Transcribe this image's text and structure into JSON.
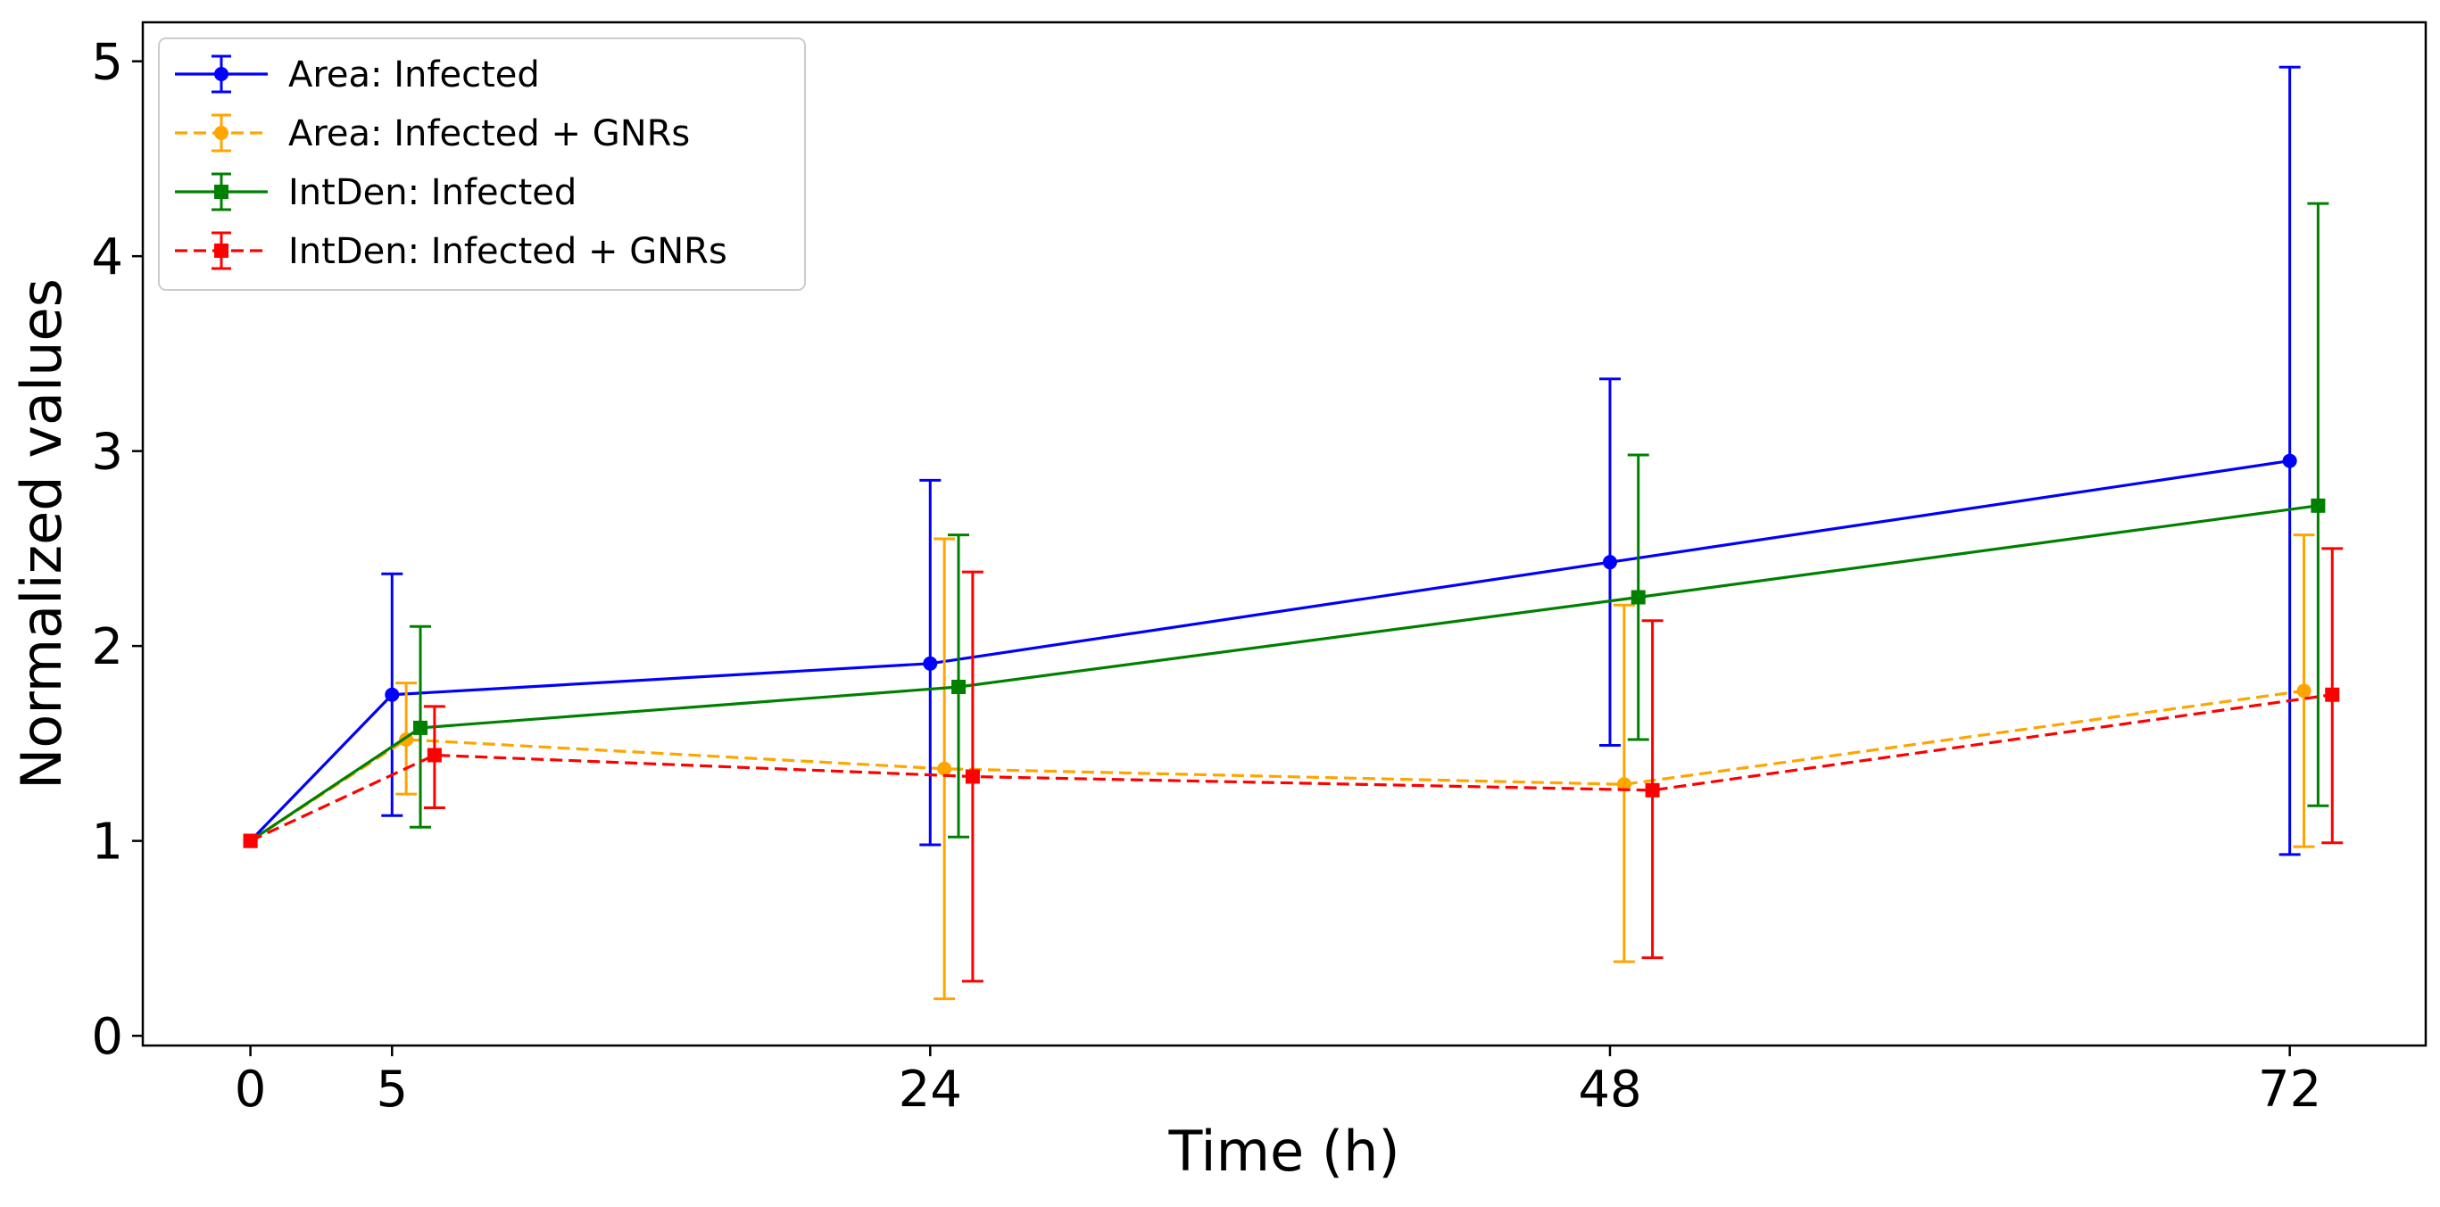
{
  "chart_data": {
    "type": "line",
    "title": "",
    "xlabel": "Time (h)",
    "ylabel": "Normalized values",
    "xlim": [
      -3.8,
      76.8
    ],
    "ylim": [
      -0.05,
      5.2
    ],
    "xticks": [
      0,
      5,
      24,
      48,
      72
    ],
    "yticks": [
      0,
      1,
      2,
      3,
      4,
      5
    ],
    "xtick_labels": [
      "0",
      "5",
      "24",
      "48",
      "72"
    ],
    "ytick_labels": [
      "0",
      "1",
      "2",
      "3",
      "4",
      "5"
    ],
    "grid": false,
    "legend_position": "top-left",
    "series": [
      {
        "name": "Area: Infected",
        "color": "#0000ff",
        "linestyle": "solid",
        "marker": "circle",
        "x": [
          0,
          5,
          24,
          48,
          72
        ],
        "y": [
          1.0,
          1.75,
          1.91,
          2.43,
          2.95
        ],
        "err_low": [
          1.0,
          1.13,
          0.98,
          1.49,
          0.93
        ],
        "err_high": [
          1.0,
          2.37,
          2.85,
          3.37,
          4.97
        ]
      },
      {
        "name": "Area: Infected + GNRs",
        "color": "#ffa500",
        "linestyle": "dashed",
        "marker": "circle",
        "x": [
          0,
          5.5,
          24.5,
          48.5,
          72.5
        ],
        "y": [
          1.0,
          1.52,
          1.37,
          1.29,
          1.77
        ],
        "err_low": [
          1.0,
          1.24,
          0.19,
          0.38,
          0.97
        ],
        "err_high": [
          1.0,
          1.81,
          2.55,
          2.21,
          2.57
        ]
      },
      {
        "name": "IntDen: Infected",
        "color": "#008000",
        "linestyle": "solid",
        "marker": "square",
        "x": [
          0,
          6,
          25,
          49,
          73
        ],
        "y": [
          1.0,
          1.58,
          1.79,
          2.25,
          2.72
        ],
        "err_low": [
          1.0,
          1.07,
          1.02,
          1.52,
          1.18
        ],
        "err_high": [
          1.0,
          2.1,
          2.57,
          2.98,
          4.27
        ]
      },
      {
        "name": "IntDen: Infected + GNRs",
        "color": "#ff0000",
        "linestyle": "dashed",
        "marker": "square",
        "x": [
          0,
          6.5,
          25.5,
          49.5,
          73.5
        ],
        "y": [
          1.0,
          1.44,
          1.33,
          1.26,
          1.75
        ],
        "err_low": [
          1.0,
          1.17,
          0.28,
          0.4,
          0.99
        ],
        "err_high": [
          1.0,
          1.69,
          2.38,
          2.13,
          2.5
        ]
      }
    ]
  }
}
